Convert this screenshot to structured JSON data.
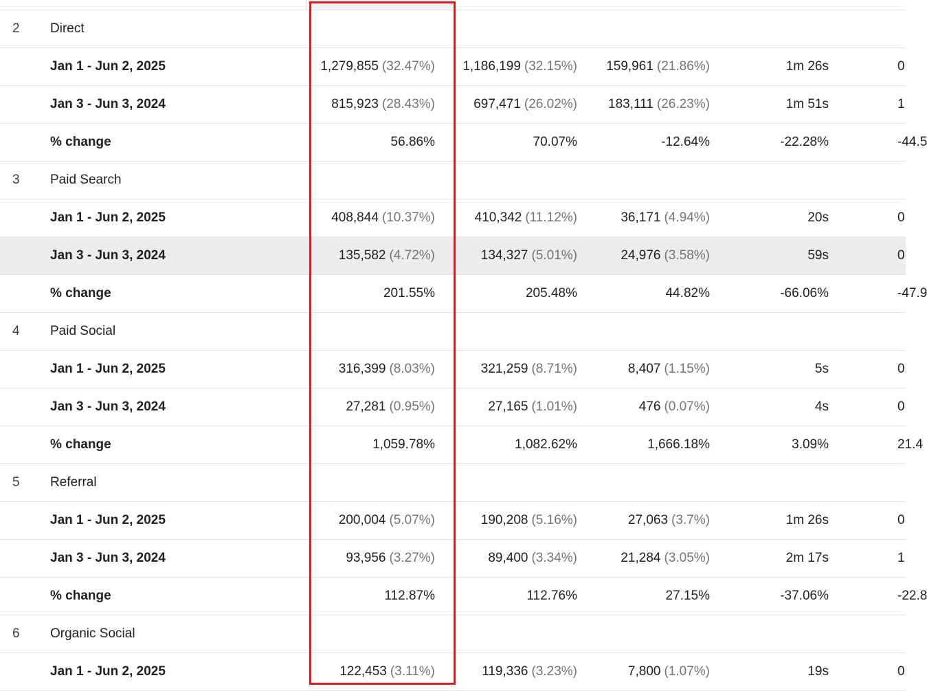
{
  "rows": [
    {
      "type": "group",
      "index": "2",
      "label": "Direct"
    },
    {
      "type": "period",
      "label": "Jan 1 - Jun 2, 2025",
      "c1": "1,279,855",
      "c1p": "(32.47%)",
      "c2": "1,186,199",
      "c2p": "(32.15%)",
      "c3": "159,961",
      "c3p": "(21.86%)",
      "c4": "1m 26s",
      "c5": "0"
    },
    {
      "type": "period",
      "label": "Jan 3 - Jun 3, 2024",
      "c1": "815,923",
      "c1p": "(28.43%)",
      "c2": "697,471",
      "c2p": "(26.02%)",
      "c3": "183,111",
      "c3p": "(26.23%)",
      "c4": "1m 51s",
      "c5": "1"
    },
    {
      "type": "change",
      "label": "% change",
      "c1": "56.86%",
      "c2": "70.07%",
      "c3": "-12.64%",
      "c4": "-22.28%",
      "c5": "-44.5"
    },
    {
      "type": "group",
      "index": "3",
      "label": "Paid Search"
    },
    {
      "type": "period",
      "label": "Jan 1 - Jun 2, 2025",
      "c1": "408,844",
      "c1p": "(10.37%)",
      "c2": "410,342",
      "c2p": "(11.12%)",
      "c3": "36,171",
      "c3p": "(4.94%)",
      "c4": "20s",
      "c5": "0"
    },
    {
      "type": "period",
      "label": "Jan 3 - Jun 3, 2024",
      "c1": "135,582",
      "c1p": "(4.72%)",
      "c2": "134,327",
      "c2p": "(5.01%)",
      "c3": "24,976",
      "c3p": "(3.58%)",
      "c4": "59s",
      "c5": "0",
      "hovered": true
    },
    {
      "type": "change",
      "label": "% change",
      "c1": "201.55%",
      "c2": "205.48%",
      "c3": "44.82%",
      "c4": "-66.06%",
      "c5": "-47.9"
    },
    {
      "type": "group",
      "index": "4",
      "label": "Paid Social"
    },
    {
      "type": "period",
      "label": "Jan 1 - Jun 2, 2025",
      "c1": "316,399",
      "c1p": "(8.03%)",
      "c2": "321,259",
      "c2p": "(8.71%)",
      "c3": "8,407",
      "c3p": "(1.15%)",
      "c4": "5s",
      "c5": "0"
    },
    {
      "type": "period",
      "label": "Jan 3 - Jun 3, 2024",
      "c1": "27,281",
      "c1p": "(0.95%)",
      "c2": "27,165",
      "c2p": "(1.01%)",
      "c3": "476",
      "c3p": "(0.07%)",
      "c4": "4s",
      "c5": "0"
    },
    {
      "type": "change",
      "label": "% change",
      "c1": "1,059.78%",
      "c2": "1,082.62%",
      "c3": "1,666.18%",
      "c4": "3.09%",
      "c5": "21.4"
    },
    {
      "type": "group",
      "index": "5",
      "label": "Referral"
    },
    {
      "type": "period",
      "label": "Jan 1 - Jun 2, 2025",
      "c1": "200,004",
      "c1p": "(5.07%)",
      "c2": "190,208",
      "c2p": "(5.16%)",
      "c3": "27,063",
      "c3p": "(3.7%)",
      "c4": "1m 26s",
      "c5": "0"
    },
    {
      "type": "period",
      "label": "Jan 3 - Jun 3, 2024",
      "c1": "93,956",
      "c1p": "(3.27%)",
      "c2": "89,400",
      "c2p": "(3.34%)",
      "c3": "21,284",
      "c3p": "(3.05%)",
      "c4": "2m 17s",
      "c5": "1"
    },
    {
      "type": "change",
      "label": "% change",
      "c1": "112.87%",
      "c2": "112.76%",
      "c3": "27.15%",
      "c4": "-37.06%",
      "c5": "-22.8"
    },
    {
      "type": "group",
      "index": "6",
      "label": "Organic Social"
    },
    {
      "type": "period",
      "label": "Jan 1 - Jun 2, 2025",
      "c1": "122,453",
      "c1p": "(3.11%)",
      "c2": "119,336",
      "c2p": "(3.23%)",
      "c3": "7,800",
      "c3p": "(1.07%)",
      "c4": "19s",
      "c5": "0"
    }
  ],
  "colors": {
    "highlight_box": "#e31b1b",
    "highlight_column": "#f1f3f4",
    "hover_row": "#ececec",
    "secondary_text": "#70757a"
  }
}
